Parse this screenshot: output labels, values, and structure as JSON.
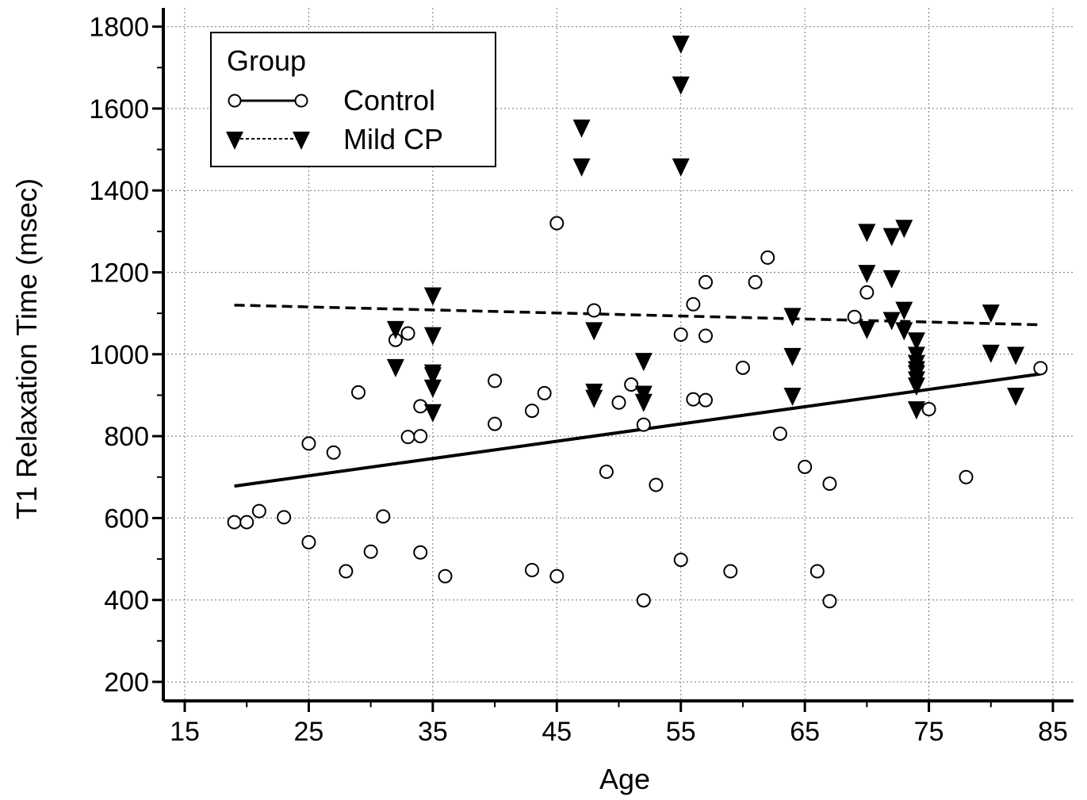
{
  "chart_data": {
    "type": "scatter",
    "title": "",
    "xlabel": "Age",
    "ylabel": "T1 Relaxation Time (msec)",
    "xlim": [
      15,
      85
    ],
    "ylim": [
      200,
      1800
    ],
    "xticks": [
      "15",
      "25",
      "35",
      "45",
      "55",
      "65",
      "75",
      "85"
    ],
    "yticks": [
      "200",
      "400",
      "600",
      "800",
      "1000",
      "1200",
      "1400",
      "1600",
      "1800"
    ],
    "grid": true,
    "legend": {
      "title": "Group",
      "placement": "top-left",
      "entries": [
        "Control",
        "Mild CP"
      ]
    },
    "series": [
      {
        "name": "Control",
        "marker": "open-circle",
        "line_style": "solid",
        "color": "#000000",
        "fit_line": [
          [
            19,
            678
          ],
          [
            84,
            952
          ]
        ],
        "points": [
          [
            19,
            590
          ],
          [
            20,
            590
          ],
          [
            21,
            617
          ],
          [
            23,
            602
          ],
          [
            25,
            782
          ],
          [
            25,
            541
          ],
          [
            27,
            760
          ],
          [
            28,
            470
          ],
          [
            29,
            907
          ],
          [
            30,
            518
          ],
          [
            31,
            604
          ],
          [
            32,
            1035
          ],
          [
            33,
            1051
          ],
          [
            33,
            798
          ],
          [
            34,
            873
          ],
          [
            34,
            800
          ],
          [
            34,
            516
          ],
          [
            36,
            458
          ],
          [
            40,
            935
          ],
          [
            40,
            830
          ],
          [
            43,
            862
          ],
          [
            43,
            473
          ],
          [
            44,
            905
          ],
          [
            45,
            1320
          ],
          [
            45,
            458
          ],
          [
            48,
            1107
          ],
          [
            49,
            713
          ],
          [
            50,
            882
          ],
          [
            51,
            926
          ],
          [
            52,
            828
          ],
          [
            52,
            399
          ],
          [
            53,
            681
          ],
          [
            55,
            1048
          ],
          [
            55,
            498
          ],
          [
            56,
            1122
          ],
          [
            56,
            890
          ],
          [
            57,
            1176
          ],
          [
            57,
            1045
          ],
          [
            57,
            888
          ],
          [
            59,
            470
          ],
          [
            60,
            967
          ],
          [
            61,
            1176
          ],
          [
            62,
            1236
          ],
          [
            63,
            806
          ],
          [
            65,
            725
          ],
          [
            66,
            470
          ],
          [
            67,
            684
          ],
          [
            67,
            397
          ],
          [
            69,
            1091
          ],
          [
            70,
            1151
          ],
          [
            75,
            866
          ],
          [
            78,
            700
          ],
          [
            84,
            966
          ]
        ]
      },
      {
        "name": "Mild CP",
        "marker": "filled-down-triangle",
        "line_style": "dashed",
        "color": "#000000",
        "fit_line": [
          [
            19,
            1120
          ],
          [
            84,
            1072
          ]
        ],
        "points": [
          [
            32,
            1058
          ],
          [
            32,
            965
          ],
          [
            35,
            1140
          ],
          [
            35,
            1043
          ],
          [
            35,
            952
          ],
          [
            35,
            945
          ],
          [
            35,
            915
          ],
          [
            35,
            855
          ],
          [
            47,
            1550
          ],
          [
            47,
            1455
          ],
          [
            48,
            1055
          ],
          [
            48,
            905
          ],
          [
            48,
            890
          ],
          [
            52,
            980
          ],
          [
            52,
            900
          ],
          [
            52,
            880
          ],
          [
            55,
            1755
          ],
          [
            55,
            1655
          ],
          [
            55,
            1455
          ],
          [
            64,
            1090
          ],
          [
            64,
            992
          ],
          [
            64,
            895
          ],
          [
            70,
            1295
          ],
          [
            70,
            1195
          ],
          [
            70,
            1058
          ],
          [
            72,
            1285
          ],
          [
            72,
            1182
          ],
          [
            72,
            1080
          ],
          [
            73,
            1305
          ],
          [
            73,
            1105
          ],
          [
            73,
            1055
          ],
          [
            74,
            1030
          ],
          [
            74,
            995
          ],
          [
            74,
            975
          ],
          [
            74,
            960
          ],
          [
            74,
            950
          ],
          [
            74,
            935
          ],
          [
            74,
            920
          ],
          [
            74,
            862
          ],
          [
            80,
            1098
          ],
          [
            80,
            1000
          ],
          [
            82,
            995
          ],
          [
            82,
            895
          ]
        ]
      }
    ]
  }
}
